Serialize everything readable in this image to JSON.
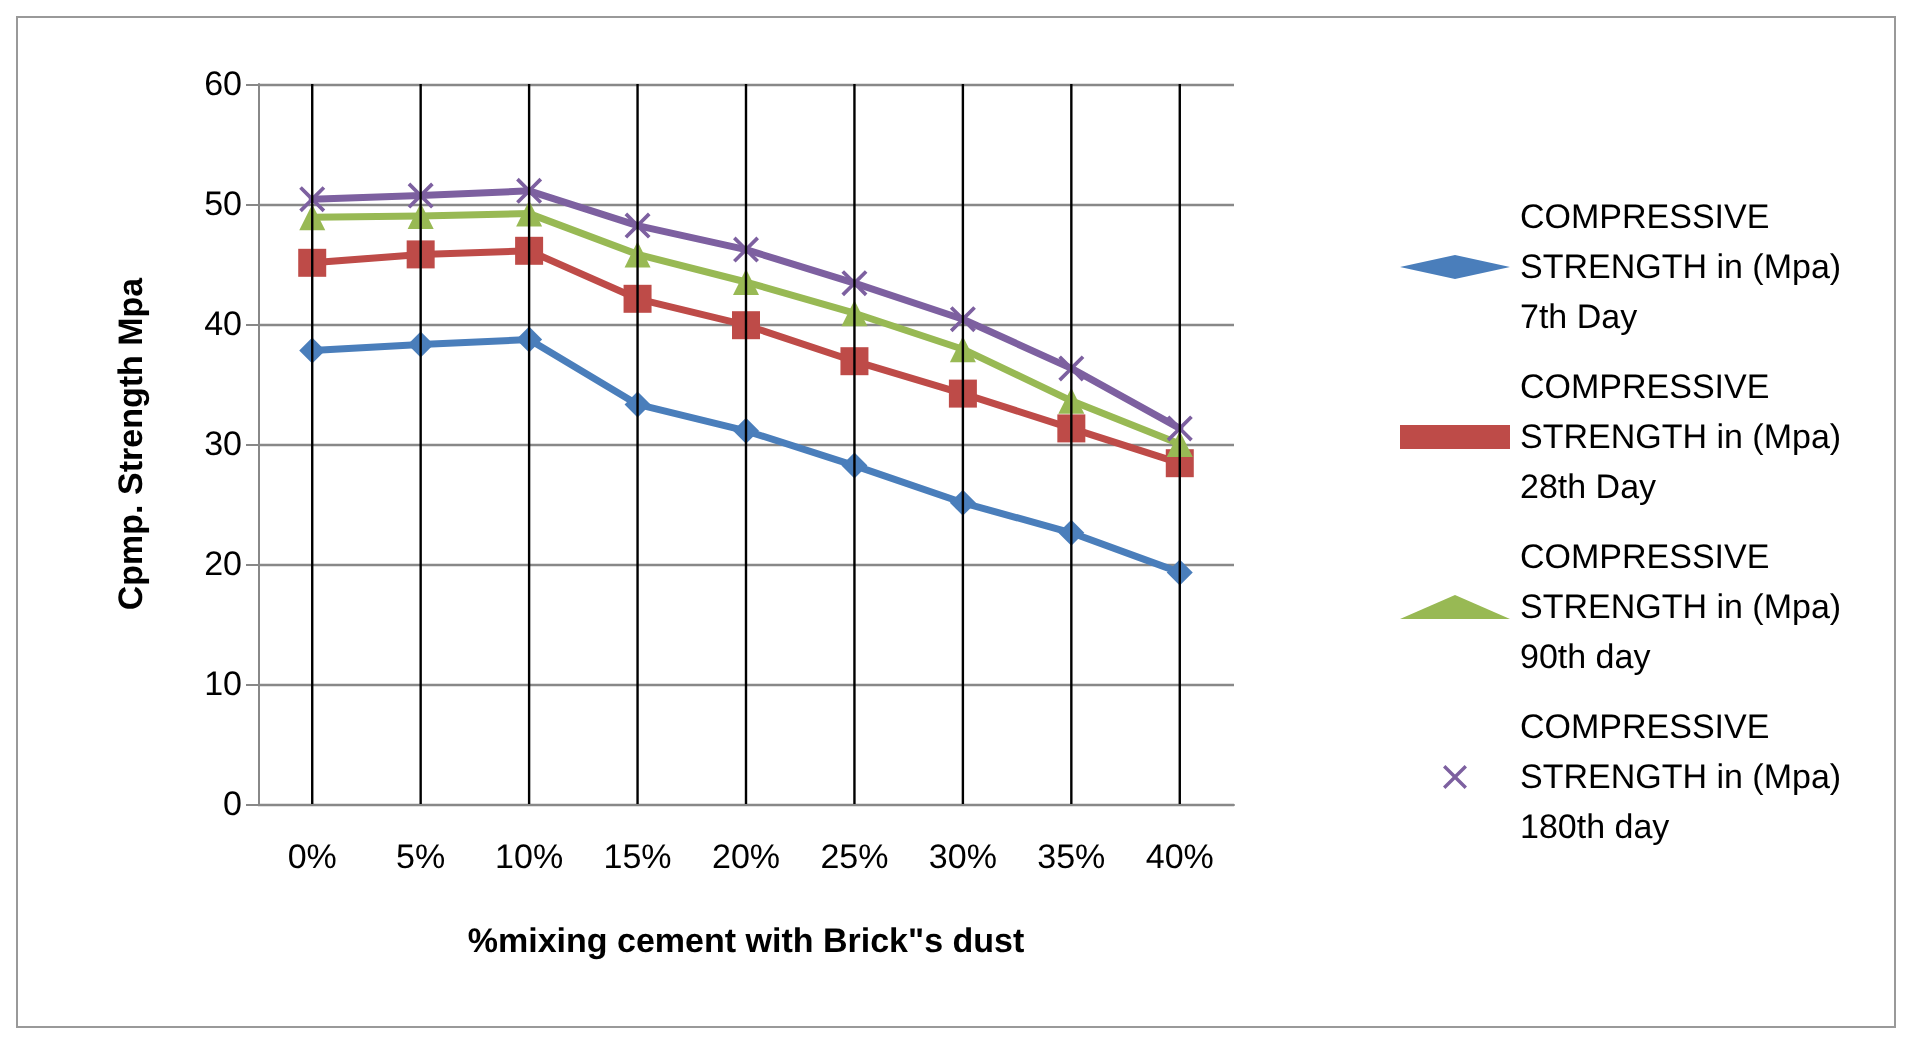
{
  "chart_data": {
    "type": "line",
    "xlabel": "%mixing cement with Brick\"s dust",
    "ylabel": "Cpmp. Strength Mpa",
    "categories": [
      "0%",
      "5%",
      "10%",
      "15%",
      "20%",
      "25%",
      "30%",
      "35%",
      "40%"
    ],
    "series": [
      {
        "name": "COMPRESSIVE STRENGTH in (Mpa) 7th Day",
        "color": "#4a7ebb",
        "marker": "diamond",
        "values": [
          37.8,
          38.3,
          38.7,
          33.3,
          31.1,
          28.2,
          25.1,
          22.6,
          19.3
        ]
      },
      {
        "name": "COMPRESSIVE STRENGTH in (Mpa) 28th Day",
        "color": "#be4b48",
        "marker": "square",
        "values": [
          45.1,
          45.8,
          46.1,
          42.1,
          39.9,
          36.9,
          34.2,
          31.3,
          28.4
        ]
      },
      {
        "name": "COMPRESSIVE STRENGTH in (Mpa) 90th day",
        "color": "#98b954",
        "marker": "triangle",
        "values": [
          48.9,
          49.0,
          49.2,
          45.8,
          43.5,
          40.9,
          37.9,
          33.6,
          30.0
        ]
      },
      {
        "name": "COMPRESSIVE STRENGTH in (Mpa) 180th day",
        "color": "#7d60a0",
        "marker": "cross",
        "values": [
          50.4,
          50.7,
          51.1,
          48.2,
          46.2,
          43.4,
          40.4,
          36.3,
          31.3
        ]
      }
    ],
    "ylim": [
      0,
      60
    ],
    "yticks": [
      0,
      10,
      20,
      30,
      40,
      50,
      60
    ],
    "grid": true,
    "legend": "right",
    "line_style": "solid"
  }
}
